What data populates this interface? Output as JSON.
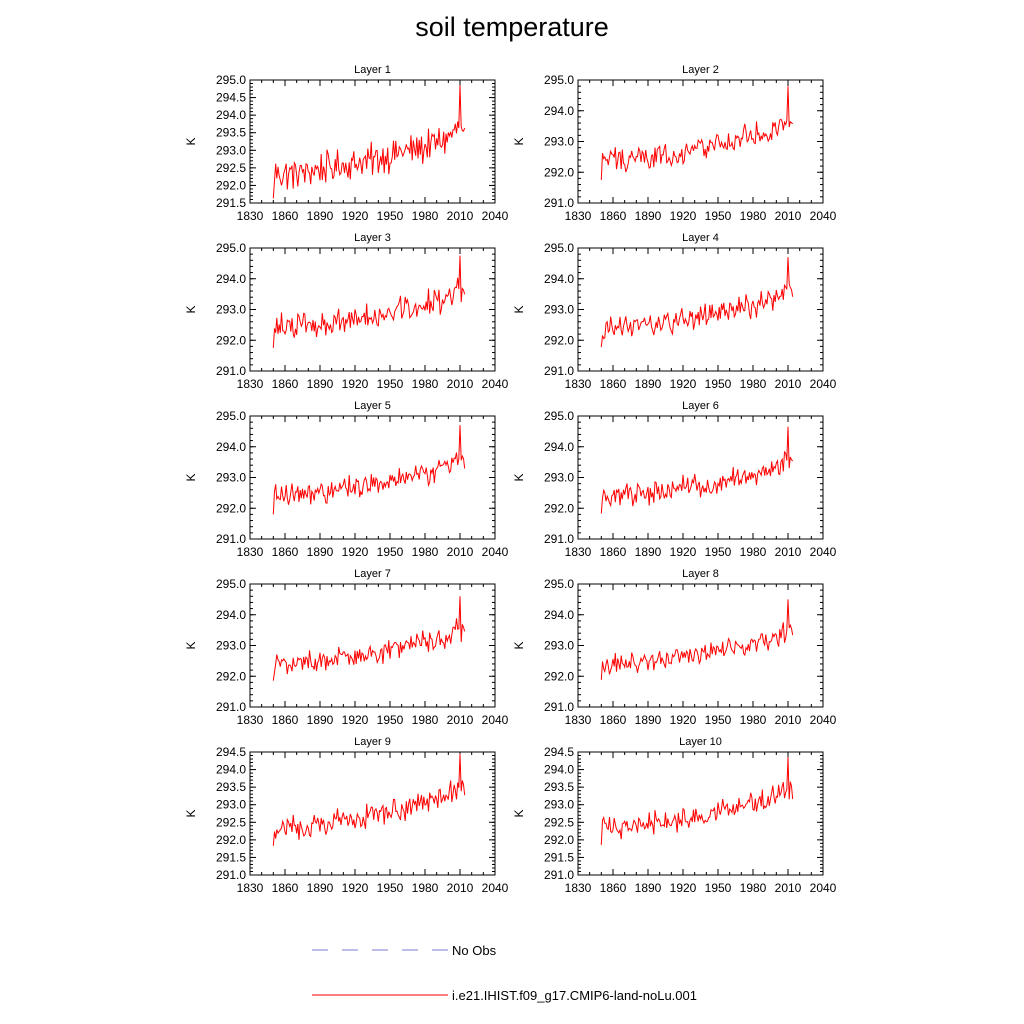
{
  "title": "soil temperature",
  "legend": {
    "items": [
      {
        "label": "No Obs",
        "color": "#7b7bd6",
        "style": "dashed"
      },
      {
        "label": "i.e21.IHIST.f09_g17.CMIP6-land-noLu.001",
        "color": "#ff0000",
        "style": "solid"
      }
    ]
  },
  "chart_data": [
    {
      "type": "line",
      "title": "Layer 1",
      "ylabel": "K",
      "xlim": [
        1830,
        2040
      ],
      "ylim": [
        291.5,
        295.0
      ],
      "xticks": [
        "1830",
        "1860",
        "1890",
        "1920",
        "1950",
        "1980",
        "2010",
        "2040"
      ],
      "yticks": [
        "291.5",
        "292.0",
        "292.5",
        "293.0",
        "293.5",
        "294.0",
        "294.5",
        "295.0"
      ],
      "series": [
        {
          "name": "i.e21.IHIST.f09_g17.CMIP6-land-noLu.001",
          "color": "#ff0000",
          "x_range": [
            1850,
            2014
          ],
          "base": 292.35,
          "trend_end": 293.45,
          "amplitude": 0.55,
          "peak": 294.85,
          "peak_year": 2010
        }
      ]
    },
    {
      "type": "line",
      "title": "Layer 2",
      "ylabel": "K",
      "xlim": [
        1830,
        2040
      ],
      "ylim": [
        291.0,
        295.0
      ],
      "xticks": [
        "1830",
        "1860",
        "1890",
        "1920",
        "1950",
        "1980",
        "2010",
        "2040"
      ],
      "yticks": [
        "291.0",
        "292.0",
        "293.0",
        "294.0",
        "295.0"
      ],
      "series": [
        {
          "name": "i.e21.IHIST.f09_g17.CMIP6-land-noLu.001",
          "color": "#ff0000",
          "x_range": [
            1850,
            2014
          ],
          "base": 292.4,
          "trend_end": 293.5,
          "amplitude": 0.5,
          "peak": 294.8,
          "peak_year": 2010
        }
      ]
    },
    {
      "type": "line",
      "title": "Layer 3",
      "ylabel": "K",
      "xlim": [
        1830,
        2040
      ],
      "ylim": [
        291.0,
        295.0
      ],
      "xticks": [
        "1830",
        "1860",
        "1890",
        "1920",
        "1950",
        "1980",
        "2010",
        "2040"
      ],
      "yticks": [
        "291.0",
        "292.0",
        "293.0",
        "294.0",
        "295.0"
      ],
      "series": [
        {
          "name": "i.e21.IHIST.f09_g17.CMIP6-land-noLu.001",
          "color": "#ff0000",
          "x_range": [
            1850,
            2014
          ],
          "base": 292.4,
          "trend_end": 293.5,
          "amplitude": 0.5,
          "peak": 294.75,
          "peak_year": 2010
        }
      ]
    },
    {
      "type": "line",
      "title": "Layer 4",
      "ylabel": "K",
      "xlim": [
        1830,
        2040
      ],
      "ylim": [
        291.0,
        295.0
      ],
      "xticks": [
        "1830",
        "1860",
        "1890",
        "1920",
        "1950",
        "1980",
        "2010",
        "2040"
      ],
      "yticks": [
        "291.0",
        "292.0",
        "293.0",
        "294.0",
        "295.0"
      ],
      "series": [
        {
          "name": "i.e21.IHIST.f09_g17.CMIP6-land-noLu.001",
          "color": "#ff0000",
          "x_range": [
            1850,
            2014
          ],
          "base": 292.4,
          "trend_end": 293.5,
          "amplitude": 0.48,
          "peak": 294.7,
          "peak_year": 2010
        }
      ]
    },
    {
      "type": "line",
      "title": "Layer 5",
      "ylabel": "K",
      "xlim": [
        1830,
        2040
      ],
      "ylim": [
        291.0,
        295.0
      ],
      "xticks": [
        "1830",
        "1860",
        "1890",
        "1920",
        "1950",
        "1980",
        "2010",
        "2040"
      ],
      "yticks": [
        "291.0",
        "292.0",
        "293.0",
        "294.0",
        "295.0"
      ],
      "series": [
        {
          "name": "i.e21.IHIST.f09_g17.CMIP6-land-noLu.001",
          "color": "#ff0000",
          "x_range": [
            1850,
            2014
          ],
          "base": 292.4,
          "trend_end": 293.45,
          "amplitude": 0.46,
          "peak": 294.7,
          "peak_year": 2010
        }
      ]
    },
    {
      "type": "line",
      "title": "Layer 6",
      "ylabel": "K",
      "xlim": [
        1830,
        2040
      ],
      "ylim": [
        291.0,
        295.0
      ],
      "xticks": [
        "1830",
        "1860",
        "1890",
        "1920",
        "1950",
        "1980",
        "2010",
        "2040"
      ],
      "yticks": [
        "291.0",
        "292.0",
        "293.0",
        "294.0",
        "295.0"
      ],
      "series": [
        {
          "name": "i.e21.IHIST.f09_g17.CMIP6-land-noLu.001",
          "color": "#ff0000",
          "x_range": [
            1850,
            2014
          ],
          "base": 292.4,
          "trend_end": 293.4,
          "amplitude": 0.44,
          "peak": 294.65,
          "peak_year": 2010
        }
      ]
    },
    {
      "type": "line",
      "title": "Layer 7",
      "ylabel": "K",
      "xlim": [
        1830,
        2040
      ],
      "ylim": [
        291.0,
        295.0
      ],
      "xticks": [
        "1830",
        "1860",
        "1890",
        "1920",
        "1950",
        "1980",
        "2010",
        "2040"
      ],
      "yticks": [
        "291.0",
        "292.0",
        "293.0",
        "294.0",
        "295.0"
      ],
      "series": [
        {
          "name": "i.e21.IHIST.f09_g17.CMIP6-land-noLu.001",
          "color": "#ff0000",
          "x_range": [
            1850,
            2014
          ],
          "base": 292.4,
          "trend_end": 293.4,
          "amplitude": 0.42,
          "peak": 294.6,
          "peak_year": 2010
        }
      ]
    },
    {
      "type": "line",
      "title": "Layer 8",
      "ylabel": "K",
      "xlim": [
        1830,
        2040
      ],
      "ylim": [
        291.0,
        295.0
      ],
      "xticks": [
        "1830",
        "1860",
        "1890",
        "1920",
        "1950",
        "1980",
        "2010",
        "2040"
      ],
      "yticks": [
        "291.0",
        "292.0",
        "293.0",
        "294.0",
        "295.0"
      ],
      "series": [
        {
          "name": "i.e21.IHIST.f09_g17.CMIP6-land-noLu.001",
          "color": "#ff0000",
          "x_range": [
            1850,
            2014
          ],
          "base": 292.4,
          "trend_end": 293.35,
          "amplitude": 0.4,
          "peak": 294.5,
          "peak_year": 2010
        }
      ]
    },
    {
      "type": "line",
      "title": "Layer 9",
      "ylabel": "K",
      "xlim": [
        1830,
        2040
      ],
      "ylim": [
        291.0,
        294.5
      ],
      "xticks": [
        "1830",
        "1860",
        "1890",
        "1920",
        "1950",
        "1980",
        "2010",
        "2040"
      ],
      "yticks": [
        "291.0",
        "291.5",
        "292.0",
        "292.5",
        "293.0",
        "293.5",
        "294.0",
        "294.5"
      ],
      "series": [
        {
          "name": "i.e21.IHIST.f09_g17.CMIP6-land-noLu.001",
          "color": "#ff0000",
          "x_range": [
            1850,
            2014
          ],
          "base": 292.35,
          "trend_end": 293.35,
          "amplitude": 0.4,
          "peak": 294.45,
          "peak_year": 2010
        }
      ]
    },
    {
      "type": "line",
      "title": "Layer 10",
      "ylabel": "K",
      "xlim": [
        1830,
        2040
      ],
      "ylim": [
        291.0,
        294.5
      ],
      "xticks": [
        "1830",
        "1860",
        "1890",
        "1920",
        "1950",
        "1980",
        "2010",
        "2040"
      ],
      "yticks": [
        "291.0",
        "291.5",
        "292.0",
        "292.5",
        "293.0",
        "293.5",
        "294.0",
        "294.5"
      ],
      "series": [
        {
          "name": "i.e21.IHIST.f09_g17.CMIP6-land-noLu.001",
          "color": "#ff0000",
          "x_range": [
            1850,
            2014
          ],
          "base": 292.35,
          "trend_end": 293.3,
          "amplitude": 0.38,
          "peak": 294.35,
          "peak_year": 2010
        }
      ]
    }
  ]
}
